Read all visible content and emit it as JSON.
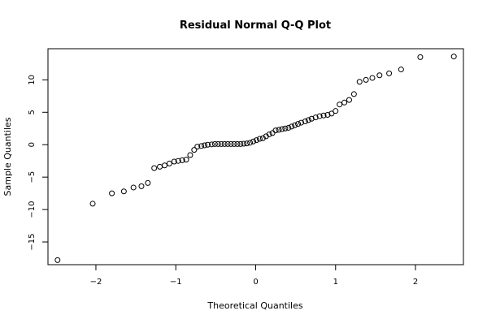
{
  "chart_data": {
    "type": "scatter",
    "title": "Residual Normal Q-Q Plot",
    "xlabel": "Theoretical Quantiles",
    "ylabel": "Sample Quantiles",
    "xlim": [
      -2.6,
      2.6
    ],
    "ylim": [
      -18.5,
      14.8
    ],
    "x_ticks": [
      -2,
      -1,
      0,
      1,
      2
    ],
    "y_ticks": [
      -15,
      -10,
      -5,
      0,
      5,
      10
    ],
    "grid": false,
    "marker": "open-circle",
    "series": [
      {
        "x": [
          -2.48,
          -2.04,
          -1.8,
          -1.65,
          -1.53,
          -1.43,
          -1.35,
          -1.27,
          -1.2,
          -1.14,
          -1.08,
          -1.02,
          -0.97,
          -0.92,
          -0.87,
          -0.82,
          -0.77,
          -0.73,
          -0.68,
          -0.64,
          -0.6,
          -0.55,
          -0.51,
          -0.47,
          -0.43,
          -0.39,
          -0.35,
          -0.31,
          -0.27,
          -0.23,
          -0.19,
          -0.15,
          -0.11,
          -0.07,
          -0.03,
          0.01,
          0.05,
          0.09,
          0.13,
          0.17,
          0.21,
          0.25,
          0.29,
          0.33,
          0.37,
          0.41,
          0.45,
          0.49,
          0.53,
          0.57,
          0.62,
          0.66,
          0.7,
          0.75,
          0.8,
          0.85,
          0.9,
          0.95,
          1.0,
          1.05,
          1.11,
          1.17,
          1.23,
          1.3,
          1.38,
          1.46,
          1.55,
          1.67,
          1.82,
          2.06,
          2.48
        ],
        "y": [
          -17.8,
          -9.1,
          -7.5,
          -7.2,
          -6.6,
          -6.4,
          -5.9,
          -3.6,
          -3.4,
          -3.2,
          -2.9,
          -2.6,
          -2.5,
          -2.4,
          -2.3,
          -1.6,
          -0.8,
          -0.3,
          -0.2,
          -0.1,
          0.0,
          0.05,
          0.1,
          0.1,
          0.1,
          0.1,
          0.1,
          0.1,
          0.1,
          0.1,
          0.1,
          0.15,
          0.2,
          0.3,
          0.5,
          0.7,
          0.9,
          1.0,
          1.3,
          1.6,
          1.8,
          2.2,
          2.3,
          2.4,
          2.5,
          2.6,
          2.8,
          3.0,
          3.2,
          3.4,
          3.6,
          3.8,
          4.0,
          4.2,
          4.4,
          4.5,
          4.6,
          4.8,
          5.2,
          6.2,
          6.5,
          6.9,
          7.8,
          9.7,
          10.0,
          10.3,
          10.7,
          11.0,
          11.6,
          13.5,
          13.6
        ]
      }
    ]
  }
}
